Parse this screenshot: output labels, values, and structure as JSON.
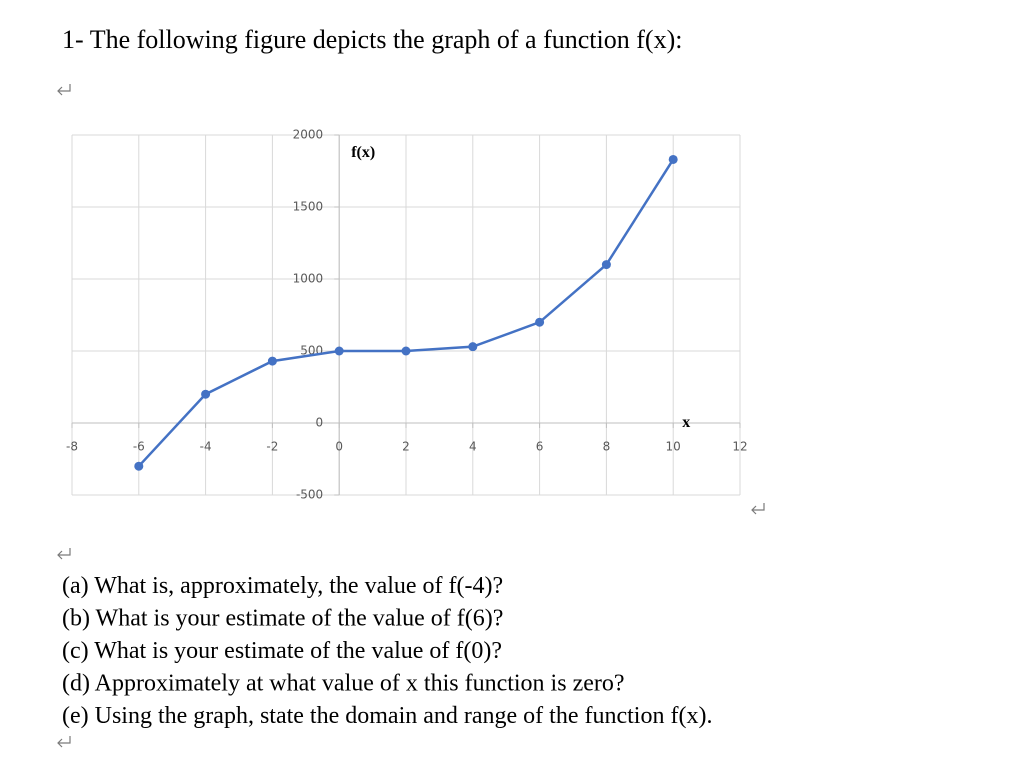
{
  "heading": "1- The following figure depicts the graph of a function f(x):",
  "chart_data": {
    "type": "line",
    "y_label": "f(x)",
    "x_label": "x",
    "x": [
      -6,
      -4,
      -2,
      0,
      2,
      4,
      6,
      8,
      10
    ],
    "series": [
      {
        "color": "#4472c4",
        "values": [
          -300,
          200,
          430,
          500,
          500,
          530,
          700,
          1100,
          1830
        ]
      }
    ],
    "xlim": [
      -8,
      12
    ],
    "xticks": [
      -8,
      -6,
      -4,
      -2,
      0,
      2,
      4,
      6,
      8,
      10,
      12
    ],
    "ylim": [
      -500,
      2000
    ],
    "yticks": [
      -500,
      0,
      500,
      1000,
      1500,
      2000
    ],
    "grid": true
  },
  "questions": [
    "(a) What is, approximately, the value of f(-4)?",
    "(b) What is your estimate of the value of f(6)?",
    "(c) What is your estimate of the value of f(0)?",
    "(d) Approximately at what value of x this function is zero?",
    "(e) Using the graph, state the domain and range of the function f(x)."
  ]
}
